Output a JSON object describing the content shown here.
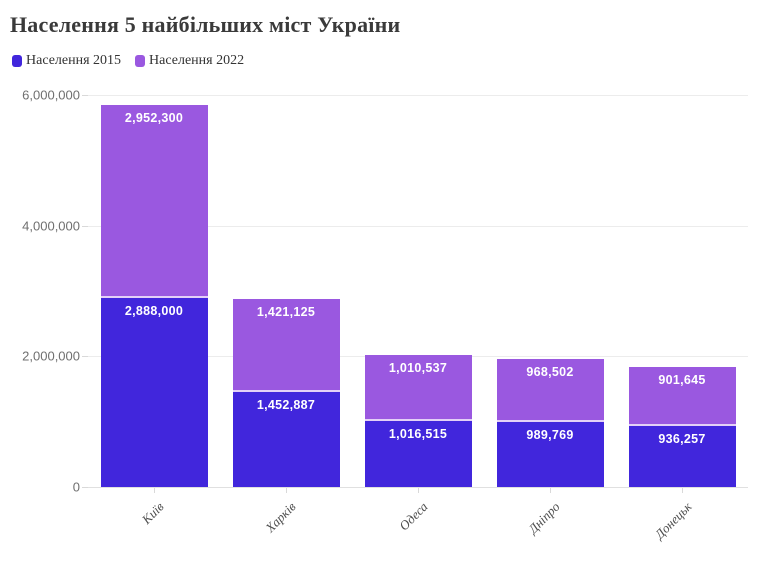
{
  "title": "Населення 5 найбільших міст України",
  "legend": [
    {
      "label": "Населення 2015",
      "color": "#4126DC"
    },
    {
      "label": "Населення 2022",
      "color": "#9A58E0"
    }
  ],
  "chart_data": {
    "type": "bar",
    "stacked": true,
    "title": "Населення 5 найбільших міст України",
    "categories": [
      "Київ",
      "Харків",
      "Одеса",
      "Дніпро",
      "Донецьк"
    ],
    "series": [
      {
        "name": "Населення 2015",
        "color": "#4126DC",
        "values": [
          2888000,
          1452887,
          1016515,
          989769,
          936257
        ],
        "value_labels": [
          "2,888,000",
          "1,452,887",
          "1,016,515",
          "989,769",
          "936,257"
        ]
      },
      {
        "name": "Населення 2022",
        "color": "#9A58E0",
        "values": [
          2952300,
          1421125,
          1010537,
          968502,
          901645
        ],
        "value_labels": [
          "2,952,300",
          "1,421,125",
          "1,010,537",
          "968,502",
          "901,645"
        ]
      }
    ],
    "ylim": [
      0,
      6000000
    ],
    "yticks": [
      {
        "value": 0,
        "label": "0"
      },
      {
        "value": 2000000,
        "label": "2,000,000"
      },
      {
        "value": 4000000,
        "label": "4,000,000"
      },
      {
        "value": 6000000,
        "label": "6,000,000"
      }
    ],
    "grid": true,
    "legend_position": "top-left",
    "xlabel": "",
    "ylabel": ""
  }
}
